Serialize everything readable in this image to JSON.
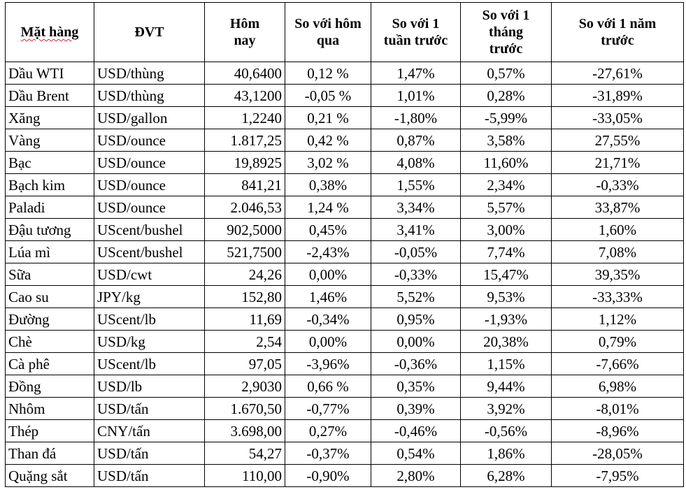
{
  "headers": {
    "item": "Mặt hàng",
    "unit": "ĐVT",
    "today": "Hôm nay",
    "vs_yesterday": "So với hôm qua",
    "vs_week": "So với 1 tuần trước",
    "vs_month": "So với 1 tháng trước",
    "vs_year": "So với 1 năm trước"
  },
  "rows": [
    {
      "item": "Dầu WTI",
      "unit": "USD/thùng",
      "today": "40,6400",
      "d1": "0,12 %",
      "w1": "1,47%",
      "m1": "0,57%",
      "y1": "-27,61%"
    },
    {
      "item": "Dầu Brent",
      "unit": "USD/thùng",
      "today": "43,1200",
      "d1": "-0,05 %",
      "w1": "1,01%",
      "m1": "0,28%",
      "y1": "-31,89%"
    },
    {
      "item": "Xăng",
      "unit": "USD/gallon",
      "today": "1,2240",
      "d1": "0,21 %",
      "w1": "-1,80%",
      "m1": "-5,99%",
      "y1": "-33,05%"
    },
    {
      "item": "Vàng",
      "unit": "USD/ounce",
      "today": "1.817,25",
      "d1": "0,42 %",
      "w1": "0,87%",
      "m1": "3,58%",
      "y1": "27,55%"
    },
    {
      "item": "Bạc",
      "unit": "USD/ounce",
      "today": "19,8925",
      "d1": "3,02 %",
      "w1": "4,08%",
      "m1": "11,60%",
      "y1": "21,71%"
    },
    {
      "item": "Bạch kim",
      "unit": "USD/ounce",
      "today": "841,21",
      "d1": "0,38%",
      "w1": "1,55%",
      "m1": "2,34%",
      "y1": "-0,33%"
    },
    {
      "item": "Paladi",
      "unit": "USD/ounce",
      "today": "2.046,53",
      "d1": "1,24 %",
      "w1": "3,34%",
      "m1": "5,57%",
      "y1": "33,87%"
    },
    {
      "item": "Đậu tương",
      "unit": "UScent/bushel",
      "today": "902,5000",
      "d1": "0,45%",
      "w1": "3,41%",
      "m1": "3,00%",
      "y1": "1,60%"
    },
    {
      "item": "Lúa mì",
      "unit": "UScent/bushel",
      "today": "521,7500",
      "d1": "-2,43%",
      "w1": "-0,05%",
      "m1": "7,74%",
      "y1": "7,08%"
    },
    {
      "item": "Sữa",
      "unit": "USD/cwt",
      "today": "24,26",
      "d1": "0,00%",
      "w1": "-0,33%",
      "m1": "15,47%",
      "y1": "39,35%"
    },
    {
      "item": "Cao su",
      "unit": "JPY/kg",
      "today": "152,80",
      "d1": "1,46%",
      "w1": "5,52%",
      "m1": "9,53%",
      "y1": "-33,33%"
    },
    {
      "item": "Đường",
      "unit": "UScent/lb",
      "today": "11,69",
      "d1": "-0,34%",
      "w1": "0,95%",
      "m1": "-1,93%",
      "y1": "1,12%"
    },
    {
      "item": "Chè",
      "unit": "USD/kg",
      "today": "2,54",
      "d1": "0,00%",
      "w1": "0,00%",
      "m1": "20,38%",
      "y1": "0,79%"
    },
    {
      "item": "Cà phê",
      "unit": "UScent/lb",
      "today": "97,05",
      "d1": "-3,96%",
      "w1": "-0,36%",
      "m1": "1,15%",
      "y1": "-7,66%"
    },
    {
      "item": "Đồng",
      "unit": "USD/lb",
      "today": "2,9030",
      "d1": "0,66 %",
      "w1": "0,35%",
      "m1": "9,44%",
      "y1": "6,98%"
    },
    {
      "item": "Nhôm",
      "unit": "USD/tấn",
      "today": "1.670,50",
      "d1": "-0,77%",
      "w1": "0,39%",
      "m1": "3,92%",
      "y1": "-8,01%"
    },
    {
      "item": "Thép",
      "unit": "CNY/tấn",
      "today": "3.698,00",
      "d1": "0,27%",
      "w1": "-0,46%",
      "m1": "-0,56%",
      "y1": "-8,96%"
    },
    {
      "item": "Than đá",
      "unit": "USD/tấn",
      "today": "54,27",
      "d1": "-0,37%",
      "w1": "0,54%",
      "m1": "1,86%",
      "y1": "-28,05%"
    },
    {
      "item": "Quặng sắt",
      "unit": "USD/tấn",
      "today": "110,00",
      "d1": "-0,90%",
      "w1": "2,80%",
      "m1": "6,28%",
      "y1": "-7,95%"
    }
  ]
}
